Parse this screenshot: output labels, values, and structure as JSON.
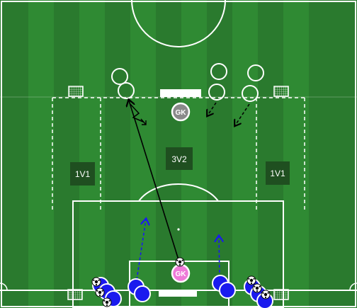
{
  "zones": {
    "left_1v1": "1V1",
    "center_3v2": "3V2",
    "right_1v1": "1V1"
  },
  "goalkeepers": {
    "top": "GK",
    "bottom": "GK"
  },
  "colors": {
    "pitch_dark": "#2a7a2e",
    "pitch_light": "#2f8a33",
    "lines": "#ffffff",
    "label_box": "#1f4f20",
    "gk_top": "#8a8a8a",
    "gk_bottom": "#ee7ad8",
    "attackers": "#1a1aee",
    "defenders": "transparent",
    "pass_arrow": "#000000",
    "run_arrow_blue": "#1a1aee",
    "run_arrow_black": "#000000"
  },
  "icons": [
    "goal-icon",
    "ball-icon",
    "player-icon"
  ]
}
